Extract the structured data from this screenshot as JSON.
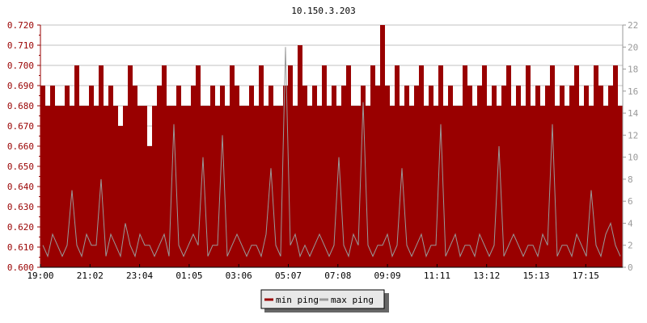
{
  "chart_data": {
    "type": "area",
    "title": "10.150.3.203",
    "x_tick_labels": [
      "19:00",
      "21:02",
      "23:04",
      "01:05",
      "03:06",
      "05:07",
      "07:08",
      "09:09",
      "11:11",
      "13:12",
      "15:13",
      "17:15"
    ],
    "left_axis": {
      "ylim": [
        0.6,
        0.72
      ],
      "ticks": [
        "0.600",
        "0.610",
        "0.620",
        "0.630",
        "0.640",
        "0.650",
        "0.660",
        "0.670",
        "0.680",
        "0.690",
        "0.700",
        "0.710",
        "0.720"
      ]
    },
    "right_axis": {
      "ylim": [
        0,
        22
      ],
      "ticks": [
        "0",
        "2",
        "4",
        "6",
        "8",
        "10",
        "12",
        "14",
        "16",
        "18",
        "20",
        "22"
      ]
    },
    "grid": true,
    "legend_position": "bottom",
    "colors": {
      "min_ping": "#990000",
      "max_ping": "#999999",
      "left_axis": "#990000",
      "grid": "#c0c0c0"
    },
    "series": [
      {
        "name": "min ping",
        "axis": "left",
        "style": "filled-step",
        "values": [
          0.69,
          0.68,
          0.69,
          0.68,
          0.68,
          0.69,
          0.68,
          0.7,
          0.68,
          0.68,
          0.69,
          0.68,
          0.7,
          0.68,
          0.69,
          0.68,
          0.67,
          0.68,
          0.7,
          0.69,
          0.68,
          0.68,
          0.66,
          0.68,
          0.69,
          0.7,
          0.68,
          0.68,
          0.69,
          0.68,
          0.68,
          0.69,
          0.7,
          0.68,
          0.68,
          0.69,
          0.68,
          0.69,
          0.68,
          0.7,
          0.69,
          0.68,
          0.68,
          0.69,
          0.68,
          0.7,
          0.68,
          0.69,
          0.68,
          0.68,
          0.69,
          0.7,
          0.68,
          0.71,
          0.69,
          0.68,
          0.69,
          0.68,
          0.7,
          0.68,
          0.69,
          0.68,
          0.69,
          0.7,
          0.68,
          0.68,
          0.69,
          0.68,
          0.7,
          0.69,
          0.72,
          0.69,
          0.68,
          0.7,
          0.68,
          0.69,
          0.68,
          0.69,
          0.7,
          0.68,
          0.69,
          0.68,
          0.7,
          0.68,
          0.69,
          0.68,
          0.68,
          0.7,
          0.69,
          0.68,
          0.69,
          0.7,
          0.68,
          0.69,
          0.68,
          0.69,
          0.7,
          0.68,
          0.69,
          0.68,
          0.7,
          0.68,
          0.69,
          0.68,
          0.69,
          0.7,
          0.68,
          0.69,
          0.68,
          0.69,
          0.7,
          0.68,
          0.69,
          0.68,
          0.7,
          0.69,
          0.68,
          0.69,
          0.7,
          0.68
        ]
      },
      {
        "name": "max ping",
        "axis": "right",
        "style": "line",
        "values": [
          2,
          1,
          3,
          2,
          1,
          2,
          7,
          2,
          1,
          3,
          2,
          2,
          8,
          1,
          3,
          2,
          1,
          4,
          2,
          1,
          3,
          2,
          2,
          1,
          2,
          3,
          1,
          13,
          2,
          1,
          2,
          3,
          2,
          10,
          1,
          2,
          2,
          12,
          1,
          2,
          3,
          2,
          1,
          2,
          2,
          1,
          3,
          9,
          2,
          1,
          20,
          2,
          3,
          1,
          2,
          1,
          2,
          3,
          2,
          1,
          2,
          10,
          2,
          1,
          3,
          2,
          15,
          2,
          1,
          2,
          2,
          3,
          1,
          2,
          9,
          2,
          1,
          2,
          3,
          1,
          2,
          2,
          13,
          1,
          2,
          3,
          1,
          2,
          2,
          1,
          3,
          2,
          1,
          2,
          11,
          1,
          2,
          3,
          2,
          1,
          2,
          2,
          1,
          3,
          2,
          13,
          1,
          2,
          2,
          1,
          3,
          2,
          1,
          7,
          2,
          1,
          3,
          4,
          2,
          1
        ]
      }
    ]
  }
}
